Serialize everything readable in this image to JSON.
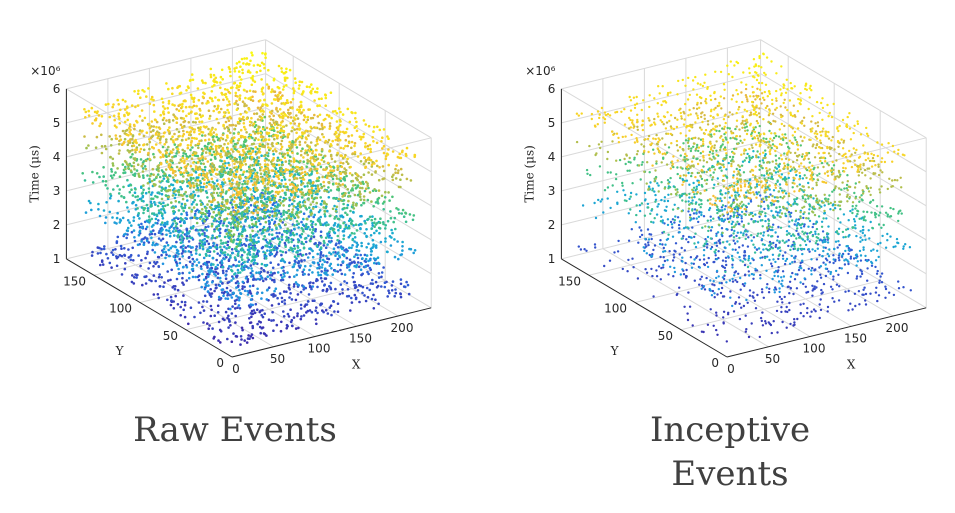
{
  "chart_data": [
    {
      "type": "scatter",
      "title": "Raw Events",
      "xlabel": "X",
      "ylabel": "Y",
      "zlabel": "Time (μs)",
      "z_exponent_label": "×10⁶",
      "xlim": [
        0,
        240
      ],
      "ylim": [
        0,
        180
      ],
      "zlim": [
        1,
        6
      ],
      "x_ticks": [
        "0",
        "50",
        "100",
        "150",
        "200"
      ],
      "y_ticks": [
        "0",
        "50",
        "100",
        "150"
      ],
      "z_ticks": [
        "1",
        "2",
        "3",
        "4",
        "5",
        "6"
      ],
      "colormap": [
        "#3e26a8",
        "#2a7fef",
        "#17b5c8",
        "#5cc863",
        "#f5b73a",
        "#f9fb0e"
      ],
      "series": [
        {
          "values": [
            [
              20,
              30,
              1.1
            ],
            [
              120,
              90,
              1.5
            ],
            [
              220,
              160,
              1.9
            ]
          ]
        },
        {
          "values": [
            [
              20,
              30,
              2.3
            ],
            [
              120,
              90,
              2.7
            ],
            [
              220,
              160,
              3.1
            ]
          ]
        },
        {
          "values": [
            [
              20,
              30,
              3.3
            ],
            [
              120,
              90,
              3.7
            ],
            [
              220,
              160,
              4.0
            ]
          ]
        },
        {
          "values": [
            [
              20,
              30,
              4.2
            ],
            [
              120,
              90,
              4.6
            ],
            [
              220,
              160,
              5.0
            ]
          ]
        },
        {
          "values": [
            [
              20,
              30,
              5.0
            ],
            [
              120,
              90,
              5.4
            ],
            [
              220,
              160,
              5.9
            ]
          ]
        }
      ]
    },
    {
      "type": "scatter",
      "title": "Inceptive Events",
      "xlabel": "X",
      "ylabel": "Y",
      "zlabel": "Time (μs)",
      "z_exponent_label": "×10⁶",
      "xlim": [
        0,
        240
      ],
      "ylim": [
        0,
        180
      ],
      "zlim": [
        1,
        6
      ],
      "x_ticks": [
        "0",
        "50",
        "100",
        "150",
        "200"
      ],
      "y_ticks": [
        "0",
        "50",
        "100",
        "150"
      ],
      "z_ticks": [
        "1",
        "2",
        "3",
        "4",
        "5",
        "6"
      ],
      "colormap": [
        "#3e26a8",
        "#2a7fef",
        "#17b5c8",
        "#5cc863",
        "#f5b73a",
        "#f9fb0e"
      ],
      "series": [
        {
          "values": [
            [
              20,
              30,
              1.1
            ],
            [
              120,
              90,
              1.5
            ],
            [
              220,
              160,
              1.9
            ]
          ]
        },
        {
          "values": [
            [
              20,
              30,
              2.3
            ],
            [
              120,
              90,
              2.7
            ],
            [
              220,
              160,
              3.1
            ]
          ]
        },
        {
          "values": [
            [
              20,
              30,
              3.3
            ],
            [
              120,
              90,
              3.7
            ],
            [
              220,
              160,
              4.0
            ]
          ]
        },
        {
          "values": [
            [
              20,
              30,
              4.2
            ],
            [
              120,
              90,
              4.6
            ],
            [
              220,
              160,
              5.0
            ]
          ]
        },
        {
          "values": [
            [
              20,
              30,
              5.0
            ],
            [
              120,
              90,
              5.4
            ],
            [
              220,
              160,
              5.9
            ]
          ]
        }
      ]
    }
  ],
  "captions": {
    "raw": "Raw Events",
    "inceptive_line1": "Inceptive",
    "inceptive_line2": "Events"
  }
}
